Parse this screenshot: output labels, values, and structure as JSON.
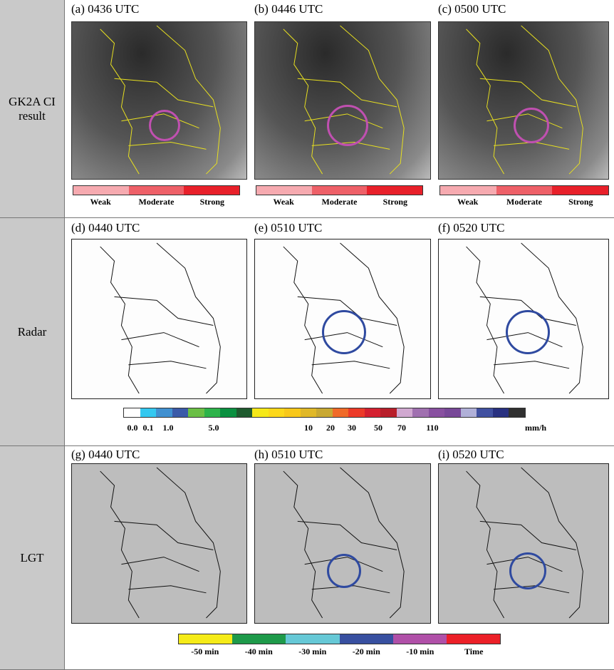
{
  "rows": [
    {
      "label": "GK2A CI result",
      "panels": [
        "(a)  0436 UTC",
        "(b)  0446 UTC",
        "(c)  0500 UTC"
      ]
    },
    {
      "label": "Radar",
      "panels": [
        "(d)  0440 UTC",
        "(e)  0510 UTC",
        "(f)  0520 UTC"
      ]
    },
    {
      "label": "LGT",
      "panels": [
        "(g)  0440 UTC",
        "(h)  0510 UTC",
        "(i)  0520 UTC"
      ]
    }
  ],
  "ci_legend": {
    "labels": [
      "Weak",
      "Moderate",
      "Strong"
    ],
    "colors": [
      "#f6aab0",
      "#ee6068",
      "#e8202a"
    ]
  },
  "radar_legend": {
    "unit": "mm/h",
    "ticks": [
      "0.0",
      "0.1",
      "1.0",
      "5.0",
      "10",
      "20",
      "30",
      "50",
      "70",
      "110"
    ],
    "colors": [
      "#ffffff",
      "#33c8f0",
      "#4090d0",
      "#3a5aa8",
      "#6abf45",
      "#2db34a",
      "#0a9040",
      "#1e5a2e",
      "#f5e818",
      "#fcd81a",
      "#f8c81a",
      "#e0b828",
      "#c8a832",
      "#f06a28",
      "#ec3a28",
      "#d42030",
      "#b81e2a",
      "#d0a8d0",
      "#a070b0",
      "#8850a0",
      "#784898",
      "#b0b0d8",
      "#4050a0",
      "#283080",
      "#303030"
    ]
  },
  "lgt_legend": {
    "labels": [
      "-50 min",
      "-40 min",
      "-30 min",
      "-20 min",
      "-10 min",
      "Time"
    ],
    "colors": [
      "#f5eb18",
      "#1e9a4a",
      "#66c8d6",
      "#3850a0",
      "#b050a8",
      "#ec2028"
    ]
  },
  "circle_colors": {
    "ci": "#c050b0",
    "radar": "#2f4aa0",
    "lgt": "#2f4aa0"
  }
}
